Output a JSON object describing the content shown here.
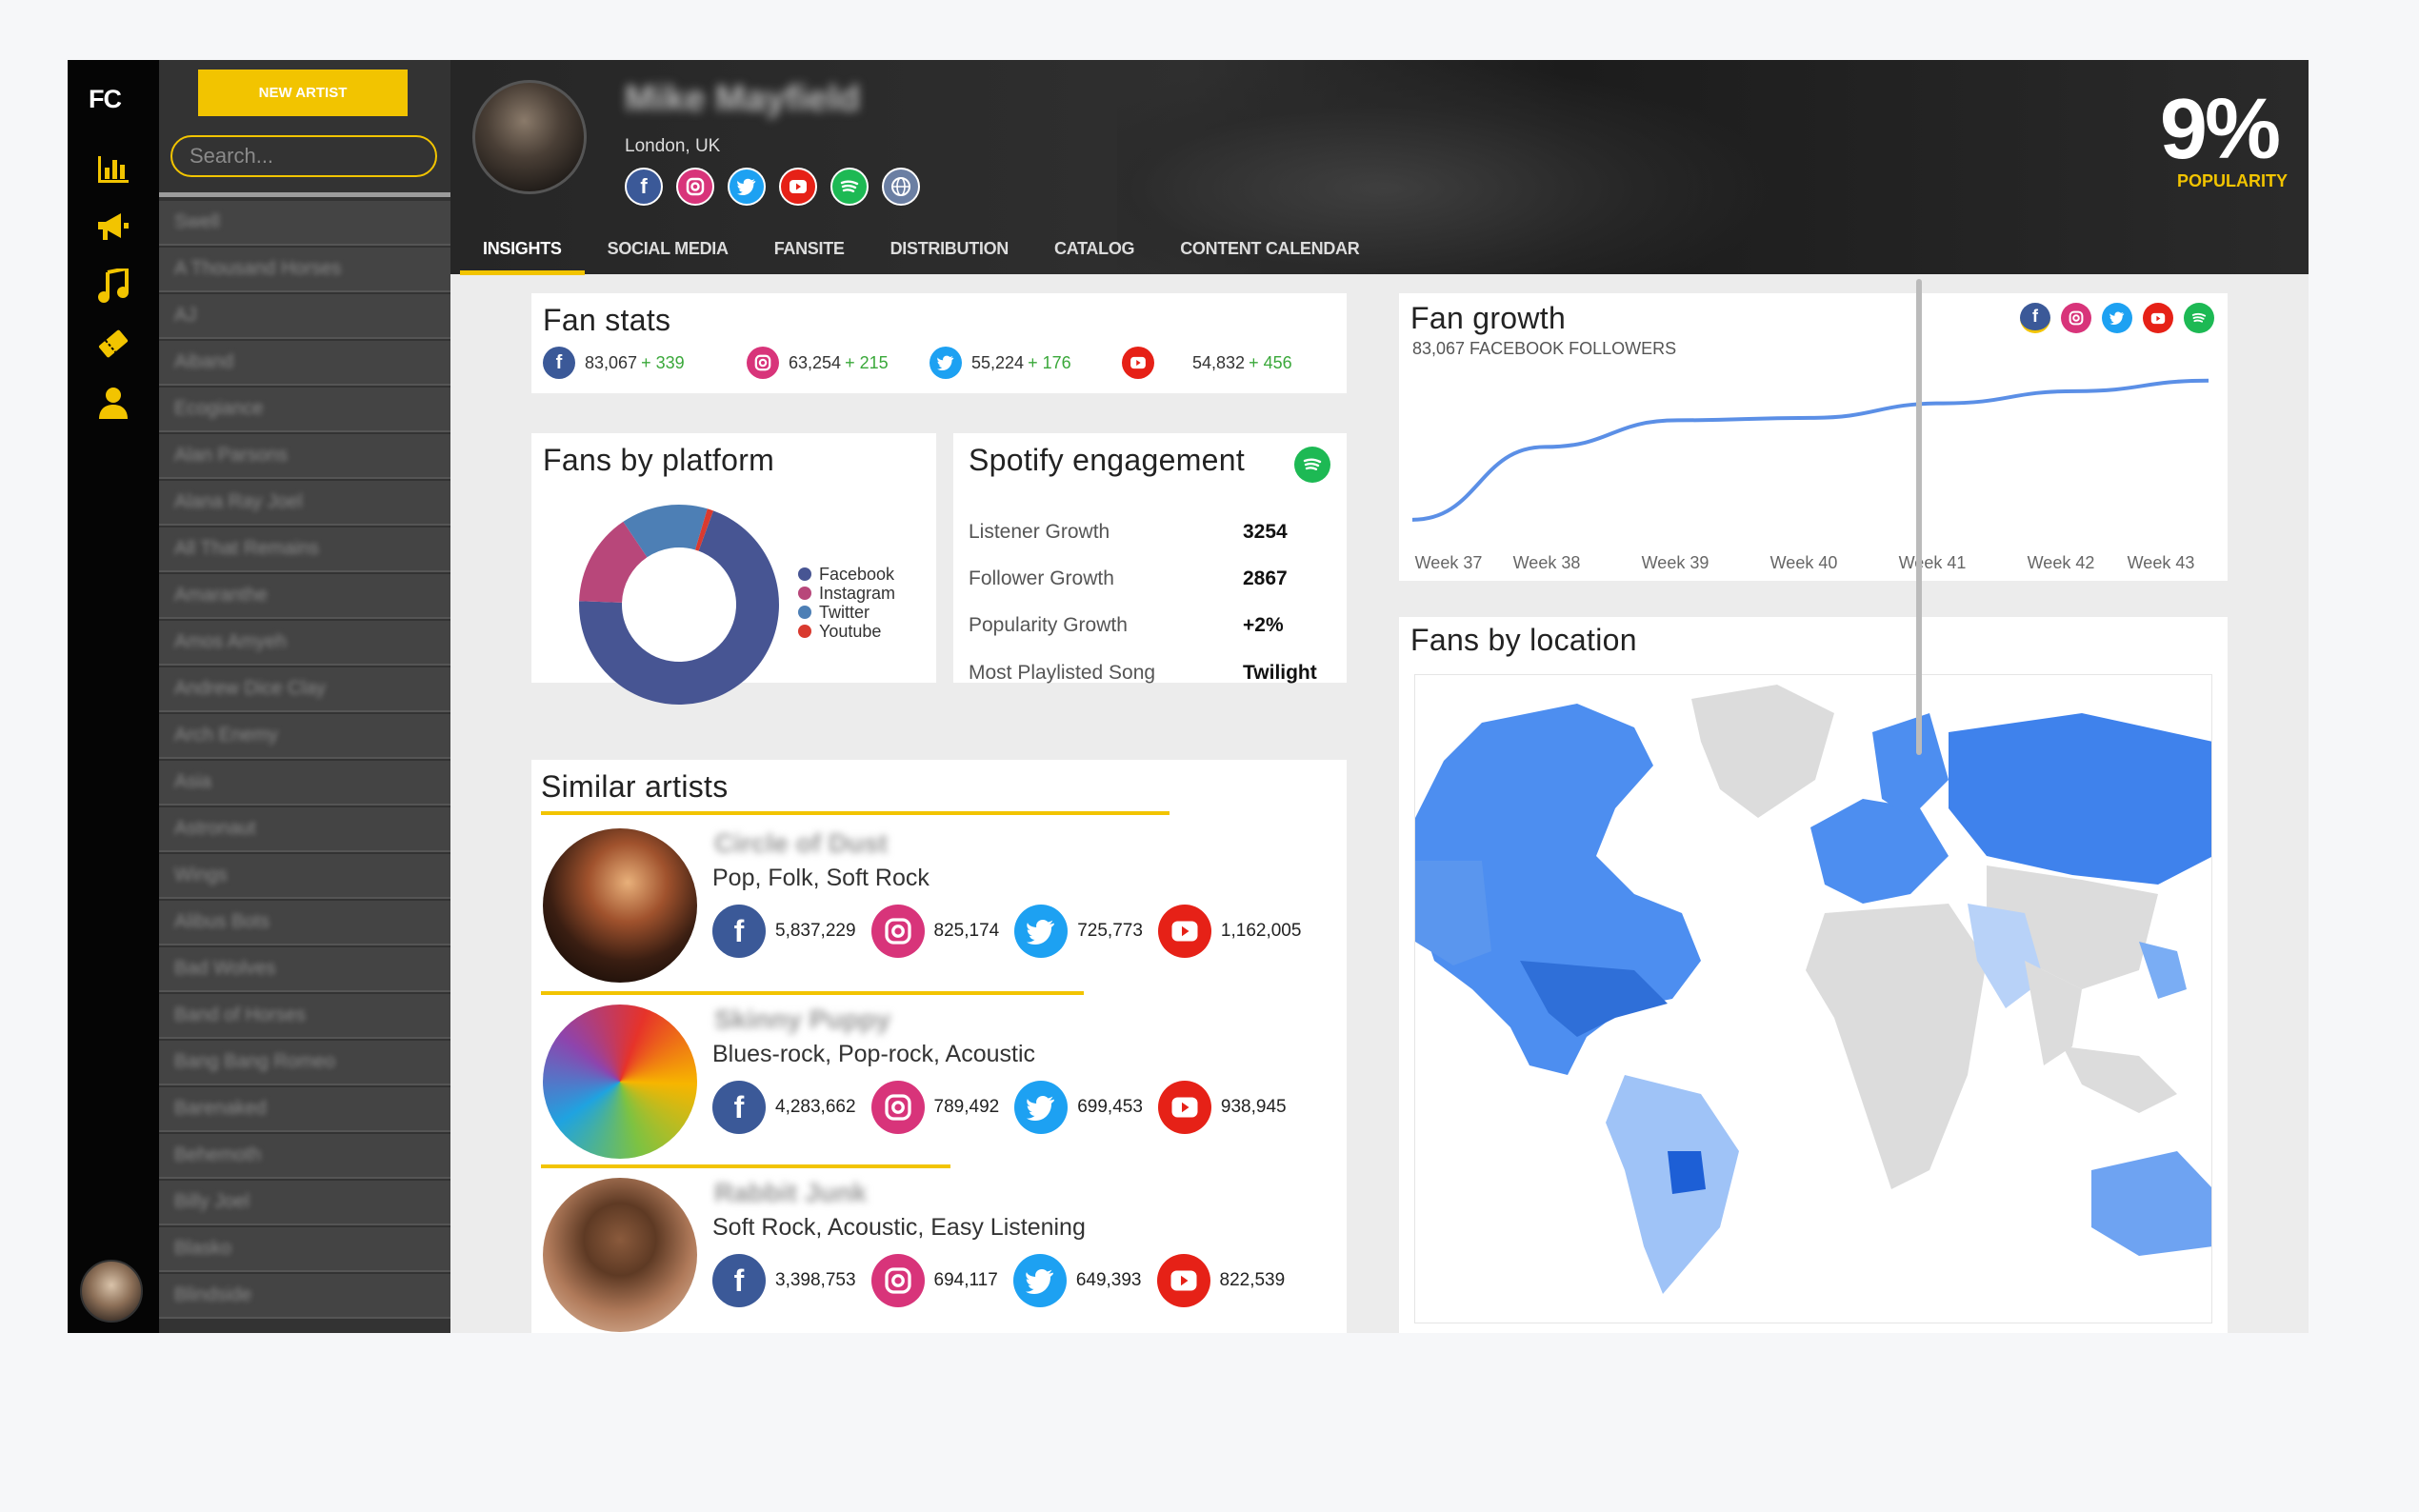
{
  "rail": {
    "logo": "FC"
  },
  "playlist_sidebar": {
    "new_button": "NEW ARTIST",
    "search_placeholder": "Search...",
    "artists": [
      "Swell",
      "A Thousand Horses",
      "AJ",
      "Aiband",
      "Ecogiance",
      "Alan Parsons",
      "Alana Ray Joel",
      "All That Remains",
      "Amaranthe",
      "Amos Amyeh",
      "Andrew Dice Clay",
      "Arch Enemy",
      "Asia",
      "Astronaut",
      "Wings",
      "Alibus Bots",
      "Bad Wolves",
      "Band of Horses",
      "Bang Bang Romeo",
      "Barenaked",
      "Behemoth",
      "Billy Joel",
      "Blasko",
      "Blindside"
    ]
  },
  "header": {
    "artist_name": "Mike Mayfield",
    "location": "London, UK",
    "popularity_value": "9%",
    "popularity_label": "POPULARITY",
    "tabs": [
      "INSIGHTS",
      "SOCIAL MEDIA",
      "FANSITE",
      "DISTRIBUTION",
      "CATALOG",
      "CONTENT CALENDAR"
    ],
    "active_tab": "INSIGHTS"
  },
  "colors": {
    "facebook": "#3b5998",
    "instagram": "#d8347a",
    "twitter": "#1da1f2",
    "youtube": "#e62117",
    "spotify": "#1db954",
    "web": "#6b7fa3",
    "accent": "#f2c400"
  },
  "fan_stats": {
    "title": "Fan stats",
    "items": [
      {
        "platform": "facebook",
        "value": "83,067",
        "change": "+ 339"
      },
      {
        "platform": "instagram",
        "value": "63,254",
        "change": "+ 215"
      },
      {
        "platform": "twitter",
        "value": "55,224",
        "change": "+ 176"
      },
      {
        "platform": "youtube",
        "value": "54,832",
        "change": "+ 456"
      }
    ]
  },
  "fans_by_platform": {
    "title": "Fans by platform",
    "chart_data": {
      "type": "pie",
      "categories": [
        "Facebook",
        "Instagram",
        "Twitter",
        "Youtube"
      ],
      "values": [
        70,
        15,
        14,
        1
      ],
      "legend_position": "right"
    }
  },
  "spotify": {
    "title": "Spotify engagement",
    "rows": [
      {
        "label": "Listener Growth",
        "value": "3254"
      },
      {
        "label": "Follower Growth",
        "value": "2867"
      },
      {
        "label": "Popularity Growth",
        "value": "+2%"
      },
      {
        "label": "Most Playlisted Song",
        "value": "Twilight"
      }
    ]
  },
  "fan_growth": {
    "title": "Fan growth",
    "subtitle": "83,067 FACEBOOK FOLLOWERS",
    "chart_data": {
      "type": "line",
      "x": [
        "Week 37",
        "Week 38",
        "Week 39",
        "Week 40",
        "Week 41",
        "Week 42",
        "Week 43"
      ],
      "series": [
        {
          "values": [
            80200,
            81700,
            82250,
            82300,
            82600,
            82850,
            83067
          ]
        }
      ],
      "grid": false
    }
  },
  "fans_by_location": {
    "title": "Fans by location"
  },
  "similar": {
    "title": "Similar artists",
    "artists": [
      {
        "name": "Circle of Dust",
        "genres": "Pop, Folk, Soft Rock",
        "facebook": "5,837,229",
        "instagram": "825,174",
        "twitter": "725,773",
        "youtube": "1,162,005"
      },
      {
        "name": "Skinny Puppy",
        "genres": "Blues-rock, Pop-rock, Acoustic",
        "facebook": "4,283,662",
        "instagram": "789,492",
        "twitter": "699,453",
        "youtube": "938,945"
      },
      {
        "name": "Rabbit Junk",
        "genres": "Soft Rock, Acoustic, Easy Listening",
        "facebook": "3,398,753",
        "instagram": "694,117",
        "twitter": "649,393",
        "youtube": "822,539"
      }
    ]
  }
}
